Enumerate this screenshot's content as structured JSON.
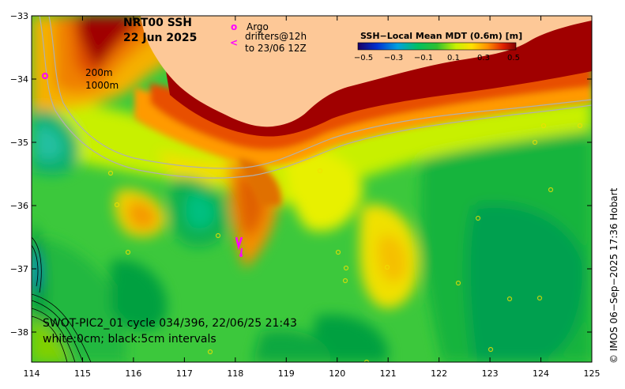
{
  "title": {
    "line1": "NRT00 SSH",
    "line2": "22 Jun 2025"
  },
  "legend": {
    "argo_marker": "o",
    "argo_label": "Argo",
    "drifter_marker": "<",
    "drifter_label_1": "drifters@12h",
    "drifter_label_2": "to 23/06 12Z"
  },
  "colorbar": {
    "title": "SSH−Local Mean MDT (0.6m) [m]",
    "ticks": [
      "−0.5",
      "−0.3",
      "−0.1",
      "0.1",
      "0.3",
      "0.5"
    ]
  },
  "isobaths": {
    "shallow": "200m",
    "deep": "1000m"
  },
  "swath_info": {
    "line1": "SWOT-PIC2_01 cycle 034/396, 22/06/25 21:43",
    "line2": "white:0cm; black:5cm intervals"
  },
  "credit": "© IMOS 06−Sep−2025 17:36 Hobart",
  "axes": {
    "x_ticks": [
      "114",
      "115",
      "116",
      "117",
      "118",
      "119",
      "120",
      "121",
      "122",
      "123",
      "124",
      "125"
    ],
    "y_ticks": [
      "−33",
      "−34",
      "−35",
      "−36",
      "−37",
      "−38"
    ]
  },
  "colors": {
    "land": "#fdc897",
    "argo": "#ff00ff",
    "drifter": "#ff00ff",
    "green_deep": "#009a3c",
    "yellow": "#f5e800",
    "red_deep": "#9a0000"
  }
}
